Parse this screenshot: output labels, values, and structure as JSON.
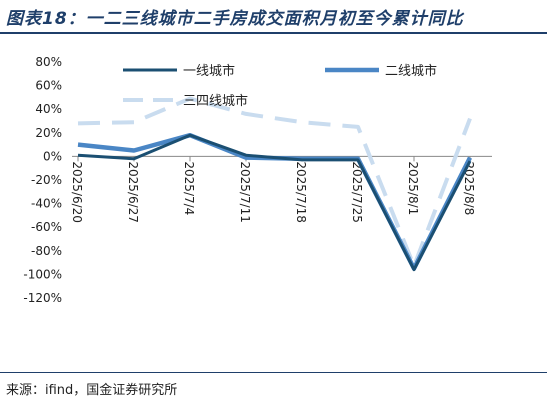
{
  "header": {
    "title": "图表18：一二三线城市二手房成交面积月初至今累计同比"
  },
  "footer": {
    "source": "来源：ifind，国金证券研究所"
  },
  "chart_data": {
    "type": "line",
    "x": [
      "2025/6/20",
      "2025/6/27",
      "2025/7/4",
      "2025/7/11",
      "2025/7/18",
      "2025/7/25",
      "2025/8/1",
      "2025/8/8"
    ],
    "yticks": [
      "80%",
      "60%",
      "40%",
      "20%",
      "0%",
      "-20%",
      "-40%",
      "-60%",
      "-80%",
      "-100%",
      "-120%"
    ],
    "ylim": [
      -120,
      80
    ],
    "series": [
      {
        "name": "一线城市",
        "values": [
          1,
          -2,
          18,
          1,
          -3,
          -3,
          -96,
          -4
        ],
        "color": "#1b4f72",
        "dash": "solid",
        "width": 3
      },
      {
        "name": "二线城市",
        "values": [
          10,
          5,
          18,
          -1,
          -2,
          -2,
          -95,
          -1
        ],
        "color": "#4a86c5",
        "dash": "solid",
        "width": 4.5
      },
      {
        "name": "三四线城市",
        "values": [
          28,
          29,
          49,
          36,
          29,
          25,
          -93,
          32
        ],
        "color": "#c9dcef",
        "dash": "dashed",
        "width": 4
      }
    ],
    "legend": "top"
  }
}
